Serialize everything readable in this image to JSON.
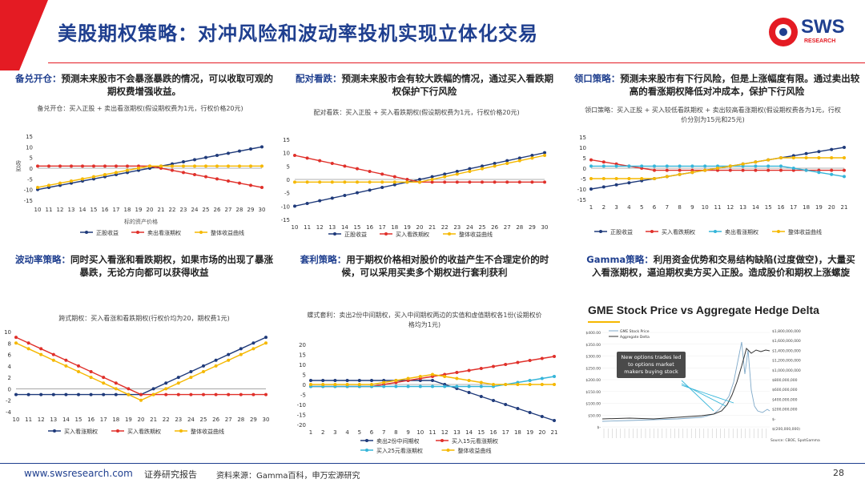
{
  "header": {
    "title": "美股期权策略：对冲风险和波动率投机实现立体化交易",
    "logo_text": "SWS",
    "logo_sub": "RESEARCH"
  },
  "colors": {
    "blue": "#1f3a7a",
    "red": "#e0302a",
    "yellow": "#f5b800",
    "cyan": "#35b5d9",
    "brand_red": "#e41b23"
  },
  "panels": [
    {
      "desc_label": "备兑开仓：",
      "desc_text": "预测未来股市不会暴涨暴跌的情况，可以收取可观的期权费增强收益。",
      "chart_title": "备兑开仓：买入正股 + 卖出看涨期权(假设期权费为1元，行权价格20元)",
      "ylabel": "收益",
      "xlabel": "标的资产价格"
    },
    {
      "desc_label": "配对看跌：",
      "desc_text": "预测未来股市会有较大跌幅的情况，通过买入看跌期权保护下行风险",
      "chart_title": "配对看跌：买入正股 + 买入看跌期权(假设期权费为1元，行权价格20元)"
    },
    {
      "desc_label": "领口策略：",
      "desc_text": "预测未来股市有下行风险，但是上涨幅度有限。通过卖出较高的看涨期权降低对冲成本，保护下行风险",
      "chart_title": "领口策略：买入正股 + 买入较低看跌期权 + 卖出较高看涨期权(假设期权费各为1元，行权价分别为15元和25元)"
    },
    {
      "desc_label": "波动率策略：",
      "desc_text": "同时买入看涨和看跌期权，如果市场的出现了暴涨暴跌，无论方向都可以获得收益",
      "chart_title": "跨式期权：买入看涨和看跌期权(行权价均为20，期权费1元)"
    },
    {
      "desc_label": "套利策略：",
      "desc_text": "用于期权价格相对股价的收益产生不合理定价的时候，可以采用买卖多个期权进行套利获利",
      "chart_title": "蝶式套利：卖出2份中间期权，买入中间期权两边的实值和虚值期权各1份(设期权价格均为1元)"
    },
    {
      "desc_label": "Gamma策略：",
      "desc_text": "利用资金优势和交易结构缺陷(过度做空)，大量买入看涨期权，逼迫期权卖方买入正股。造成股价和期权上涨螺旋"
    }
  ],
  "chart_data": [
    {
      "type": "line",
      "x": [
        10,
        11,
        12,
        13,
        14,
        15,
        16,
        17,
        18,
        19,
        20,
        21,
        22,
        23,
        24,
        25,
        26,
        27,
        28,
        29,
        30
      ],
      "ylim": [
        -15,
        15
      ],
      "yticks": [
        -15,
        -10,
        -5,
        0,
        5,
        10,
        15
      ],
      "series": [
        {
          "name": "正股收益",
          "color": "blue",
          "values": [
            -10,
            -9,
            -8,
            -7,
            -6,
            -5,
            -4,
            -3,
            -2,
            -1,
            0,
            1,
            2,
            3,
            4,
            5,
            6,
            7,
            8,
            9,
            10
          ]
        },
        {
          "name": "卖出看涨期权",
          "color": "red",
          "values": [
            1,
            1,
            1,
            1,
            1,
            1,
            1,
            1,
            1,
            1,
            1,
            0,
            -1,
            -2,
            -3,
            -4,
            -5,
            -6,
            -7,
            -8,
            -9
          ]
        },
        {
          "name": "整体收益曲线",
          "color": "yellow",
          "values": [
            -9,
            -8,
            -7,
            -6,
            -5,
            -4,
            -3,
            -2,
            -1,
            0,
            1,
            1,
            1,
            1,
            1,
            1,
            1,
            1,
            1,
            1,
            1
          ]
        }
      ]
    },
    {
      "type": "line",
      "x": [
        10,
        11,
        12,
        13,
        14,
        15,
        16,
        17,
        18,
        19,
        20,
        21,
        22,
        23,
        24,
        25,
        26,
        27,
        28,
        29,
        30
      ],
      "ylim": [
        -15,
        15
      ],
      "yticks": [
        -15,
        -10,
        -5,
        0,
        5,
        10,
        15
      ],
      "series": [
        {
          "name": "正股收益",
          "color": "blue",
          "values": [
            -10,
            -9,
            -8,
            -7,
            -6,
            -5,
            -4,
            -3,
            -2,
            -1,
            0,
            1,
            2,
            3,
            4,
            5,
            6,
            7,
            8,
            9,
            10
          ]
        },
        {
          "name": "买入看跌期权",
          "color": "red",
          "values": [
            9,
            8,
            7,
            6,
            5,
            4,
            3,
            2,
            1,
            0,
            -1,
            -1,
            -1,
            -1,
            -1,
            -1,
            -1,
            -1,
            -1,
            -1,
            -1
          ]
        },
        {
          "name": "整体收益曲线",
          "color": "yellow",
          "values": [
            -1,
            -1,
            -1,
            -1,
            -1,
            -1,
            -1,
            -1,
            -1,
            -1,
            -1,
            0,
            1,
            2,
            3,
            4,
            5,
            6,
            7,
            8,
            9
          ]
        }
      ]
    },
    {
      "type": "line",
      "x": [
        1,
        2,
        3,
        4,
        5,
        6,
        7,
        8,
        9,
        10,
        11,
        12,
        13,
        14,
        15,
        16,
        17,
        18,
        19,
        20,
        21
      ],
      "ylim": [
        -15,
        15
      ],
      "yticks": [
        -15,
        -10,
        -5,
        0,
        5,
        10,
        15
      ],
      "series": [
        {
          "name": "正股收益",
          "color": "blue",
          "values": [
            -10,
            -9,
            -8,
            -7,
            -6,
            -5,
            -4,
            -3,
            -2,
            -1,
            0,
            1,
            2,
            3,
            4,
            5,
            6,
            7,
            8,
            9,
            10
          ]
        },
        {
          "name": "买入看跌期权",
          "color": "red",
          "values": [
            4,
            3,
            2,
            1,
            0,
            -1,
            -1,
            -1,
            -1,
            -1,
            -1,
            -1,
            -1,
            -1,
            -1,
            -1,
            -1,
            -1,
            -1,
            -1,
            -1
          ]
        },
        {
          "name": "卖出看涨期权",
          "color": "cyan",
          "values": [
            1,
            1,
            1,
            1,
            1,
            1,
            1,
            1,
            1,
            1,
            1,
            1,
            1,
            1,
            1,
            1,
            0,
            -1,
            -2,
            -3,
            -4
          ]
        },
        {
          "name": "整体收益曲线",
          "color": "yellow",
          "values": [
            -5,
            -5,
            -5,
            -5,
            -5,
            -5,
            -4,
            -3,
            -2,
            -1,
            0,
            1,
            2,
            3,
            4,
            5,
            5,
            5,
            5,
            5,
            5
          ]
        }
      ]
    },
    {
      "type": "line",
      "x": [
        10,
        11,
        12,
        13,
        14,
        15,
        16,
        17,
        18,
        19,
        20,
        21,
        22,
        23,
        24,
        25,
        26,
        27,
        28,
        29,
        30
      ],
      "ylim": [
        -4,
        10
      ],
      "yticks": [
        -4,
        -2,
        0,
        2,
        4,
        6,
        8,
        10
      ],
      "series": [
        {
          "name": "买入看涨期权",
          "color": "blue",
          "values": [
            -1,
            -1,
            -1,
            -1,
            -1,
            -1,
            -1,
            -1,
            -1,
            -1,
            -1,
            0,
            1,
            2,
            3,
            4,
            5,
            6,
            7,
            8,
            9
          ]
        },
        {
          "name": "买入看跌期权",
          "color": "red",
          "values": [
            9,
            8,
            7,
            6,
            5,
            4,
            3,
            2,
            1,
            0,
            -1,
            -1,
            -1,
            -1,
            -1,
            -1,
            -1,
            -1,
            -1,
            -1,
            -1
          ]
        },
        {
          "name": "整体收益曲线",
          "color": "yellow",
          "values": [
            8,
            7,
            6,
            5,
            4,
            3,
            2,
            1,
            0,
            -1,
            -2,
            -1,
            0,
            1,
            2,
            3,
            4,
            5,
            6,
            7,
            8
          ]
        }
      ]
    },
    {
      "type": "line",
      "x": [
        1,
        2,
        3,
        4,
        5,
        6,
        7,
        8,
        9,
        10,
        11,
        12,
        13,
        14,
        15,
        16,
        17,
        18,
        19,
        20,
        21
      ],
      "ylim": [
        -20,
        20
      ],
      "yticks": [
        -20,
        -15,
        -10,
        -5,
        0,
        5,
        10,
        15,
        20
      ],
      "series": [
        {
          "name": "卖出2份中间期权",
          "color": "blue",
          "values": [
            2,
            2,
            2,
            2,
            2,
            2,
            2,
            2,
            2,
            2,
            2,
            0,
            -2,
            -4,
            -6,
            -8,
            -10,
            -12,
            -14,
            -16,
            -18
          ]
        },
        {
          "name": "买入15元看涨期权",
          "color": "red",
          "values": [
            -1,
            -1,
            -1,
            -1,
            -1,
            -1,
            0,
            1,
            2,
            3,
            4,
            5,
            6,
            7,
            8,
            9,
            10,
            11,
            12,
            13,
            14
          ]
        },
        {
          "name": "买入25元看涨期权",
          "color": "cyan",
          "values": [
            -1,
            -1,
            -1,
            -1,
            -1,
            -1,
            -1,
            -1,
            -1,
            -1,
            -1,
            -1,
            -1,
            -1,
            -1,
            -1,
            0,
            1,
            2,
            3,
            4
          ]
        },
        {
          "name": "整体收益曲线",
          "color": "yellow",
          "values": [
            0,
            0,
            0,
            0,
            0,
            0,
            1,
            2,
            3,
            4,
            5,
            4,
            3,
            2,
            1,
            0,
            0,
            0,
            0,
            0,
            0
          ]
        }
      ]
    }
  ],
  "gme": {
    "title": "GME Stock Price vs Aggregate Hedge Delta",
    "legend": [
      "GME Stock Price",
      "Aggregate Delta"
    ],
    "callout": "New options trades led to options market makers buying stock",
    "left_ticks": [
      "$400.00",
      "$350.00",
      "$300.00",
      "$250.00",
      "$200.00",
      "$150.00",
      "$100.00",
      "$50.00",
      "$-"
    ],
    "right_ticks": [
      "$1,800,000,000",
      "$1,600,000,000",
      "$1,400,000,000",
      "$1,200,000,000",
      "$1,000,000,000",
      "$800,000,000",
      "$600,000,000",
      "$400,000,000",
      "$200,000,000",
      "$-",
      "$(200,000,000)"
    ],
    "source": "Source: CBOE, SpotGamma"
  },
  "footer": {
    "url": "www.swsresearch.com",
    "report": "证券研究报告",
    "source": "资料来源：Gamma百科，申万宏源研究",
    "page": "28"
  }
}
